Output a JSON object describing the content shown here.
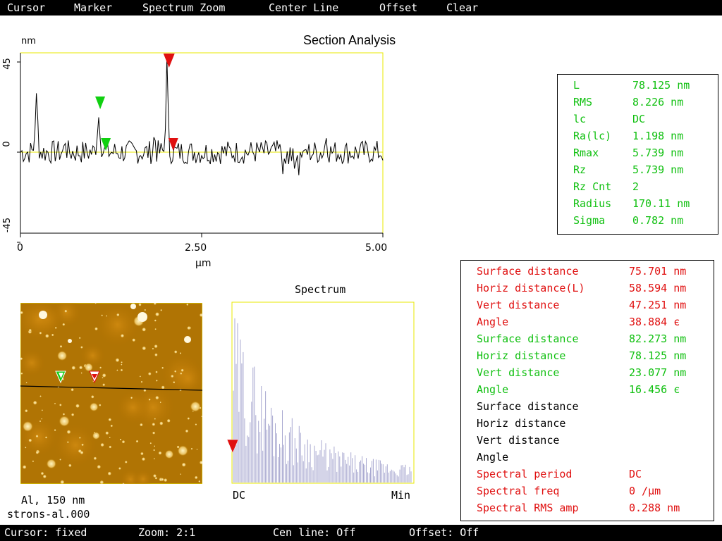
{
  "menu": [
    "Cursor",
    "Marker",
    "Spectrum Zoom",
    "Center Line",
    "Offset",
    "Clear"
  ],
  "section": {
    "title": "Section Analysis",
    "y_unit": "nm",
    "y_ticks": [
      "45",
      "0",
      "-45"
    ],
    "x_ticks": [
      "0",
      "2.50",
      "5.00"
    ],
    "x_unit": "µm",
    "ylim": [
      -45,
      45
    ],
    "xlim": [
      0,
      5
    ],
    "green_marker_x_um": 1.1,
    "red_marker_x_um": 2.05
  },
  "stats": [
    {
      "label": "L",
      "value": "78.125 nm"
    },
    {
      "label": "RMS",
      "value": "8.226 nm"
    },
    {
      "label": "lc",
      "value": "DC"
    },
    {
      "label": "Ra(lc)",
      "value": "1.198 nm"
    },
    {
      "label": "Rmax",
      "value": "5.739 nm"
    },
    {
      "label": "Rz",
      "value": "5.739 nm"
    },
    {
      "label": "Rz Cnt",
      "value": "2"
    },
    {
      "label": "Radius",
      "value": "170.11 nm"
    },
    {
      "label": "Sigma",
      "value": "0.782 nm"
    }
  ],
  "measurements": [
    {
      "label": "Surface distance",
      "value": "75.701 nm",
      "color": "red"
    },
    {
      "label": "Horiz distance(L)",
      "value": "58.594 nm",
      "color": "red"
    },
    {
      "label": "Vert distance",
      "value": "47.251 nm",
      "color": "red"
    },
    {
      "label": "Angle",
      "value": "38.884 є",
      "color": "red"
    },
    {
      "label": "Surface distance",
      "value": "82.273 nm",
      "color": "green"
    },
    {
      "label": "Horiz distance",
      "value": "78.125 nm",
      "color": "green"
    },
    {
      "label": "Vert distance",
      "value": "23.077 nm",
      "color": "green"
    },
    {
      "label": "Angle",
      "value": "16.456 є",
      "color": "green"
    },
    {
      "label": "Surface distance",
      "value": "",
      "color": "black"
    },
    {
      "label": "Horiz distance",
      "value": "",
      "color": "black"
    },
    {
      "label": "Vert distance",
      "value": "",
      "color": "black"
    },
    {
      "label": "Angle",
      "value": "",
      "color": "black"
    },
    {
      "label": "Spectral period",
      "value": "DC",
      "color": "red"
    },
    {
      "label": "Spectral freq",
      "value": "0 /µm",
      "color": "red"
    },
    {
      "label": "Spectral RMS amp",
      "value": "0.288 nm",
      "color": "red"
    }
  ],
  "image": {
    "caption1": "Al, 150 nm",
    "caption2": "strons-al.000"
  },
  "spectrum": {
    "title": "Spectrum",
    "x_left": "DC",
    "x_right": "Min"
  },
  "status": [
    "Cursor: fixed",
    "Zoom: 2:1",
    "Cen line: Off",
    "Offset: Off"
  ],
  "colors": {
    "red": "#e01010",
    "green": "#10d010",
    "stats_green": "#10c010",
    "plot_frame": "#e8e800",
    "spectrum_bars": "#a8a8d0",
    "afm_bg": "#b07000"
  }
}
